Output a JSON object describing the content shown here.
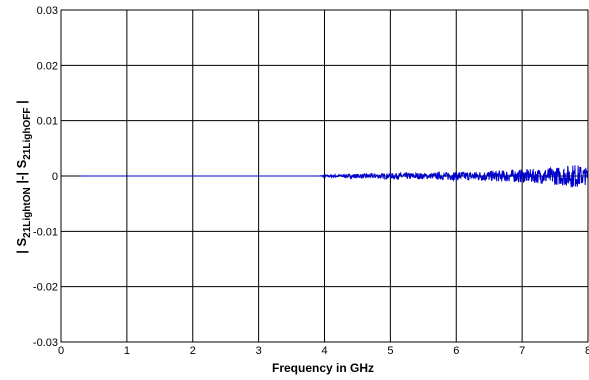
{
  "chart_data": {
    "type": "line",
    "title": "",
    "xlabel": "Frequency in GHz",
    "ylabel": {
      "prefix": "| S",
      "sub1": "21LightON",
      "mid": " |-| S",
      "sub2": "21LighOFF",
      "suffix": " |"
    },
    "xlim": [
      0,
      8
    ],
    "ylim": [
      -0.03,
      0.03
    ],
    "x_ticks": [
      0,
      1,
      2,
      3,
      4,
      5,
      6,
      7,
      8
    ],
    "x_tick_labels": [
      "0",
      "1",
      "2",
      "3",
      "4",
      "5",
      "6",
      "7",
      "8"
    ],
    "y_ticks": [
      -0.03,
      -0.02,
      -0.01,
      0,
      0.01,
      0.02,
      0.03
    ],
    "y_tick_labels": [
      "-0.03",
      "-0.02",
      "-0.01",
      "0",
      "0.01",
      "0.02",
      "0.03"
    ],
    "grid": true,
    "line_color": "#0000cc",
    "series": [
      {
        "x": [
          0.3,
          1.0,
          2.0,
          3.0,
          3.9,
          4.0,
          4.2,
          4.4,
          4.6,
          4.8,
          5.0,
          5.2,
          5.4,
          5.6,
          5.8,
          6.0,
          6.2,
          6.4,
          6.6,
          6.8,
          7.0,
          7.2,
          7.4,
          7.6,
          7.8,
          8.0
        ],
        "values": [
          0.0,
          0.0,
          0.0,
          0.0,
          0.0,
          0.0002,
          -0.0003,
          0.0004,
          -0.0004,
          0.0005,
          -0.0005,
          0.0006,
          -0.0006,
          0.0005,
          -0.0007,
          0.0008,
          -0.0008,
          0.0009,
          -0.001,
          0.0011,
          -0.0012,
          0.0013,
          -0.0015,
          0.0017,
          -0.0022,
          0.0015
        ]
      }
    ]
  }
}
